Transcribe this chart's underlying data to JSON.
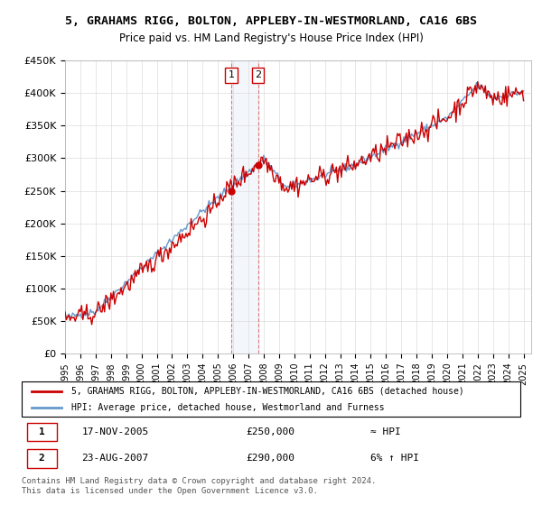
{
  "title_line1": "5, GRAHAMS RIGG, BOLTON, APPLEBY-IN-WESTMORLAND, CA16 6BS",
  "title_line2": "Price paid vs. HM Land Registry's House Price Index (HPI)",
  "ylabel": "",
  "xlabel": "",
  "legend_line1": "5, GRAHAMS RIGG, BOLTON, APPLEBY-IN-WESTMORLAND, CA16 6BS (detached house)",
  "legend_line2": "HPI: Average price, detached house, Westmorland and Furness",
  "transaction1_label": "1",
  "transaction1_date": "17-NOV-2005",
  "transaction1_price": 250000,
  "transaction1_note": "≈ HPI",
  "transaction2_label": "2",
  "transaction2_date": "23-AUG-2007",
  "transaction2_price": 290000,
  "transaction2_note": "6% ↑ HPI",
  "footer": "Contains HM Land Registry data © Crown copyright and database right 2024.\nThis data is licensed under the Open Government Licence v3.0.",
  "hpi_color": "#6699cc",
  "price_color": "#cc0000",
  "transaction_box_color": "#cc0000",
  "ylim_min": 0,
  "ylim_max": 450000,
  "background_color": "#ffffff"
}
